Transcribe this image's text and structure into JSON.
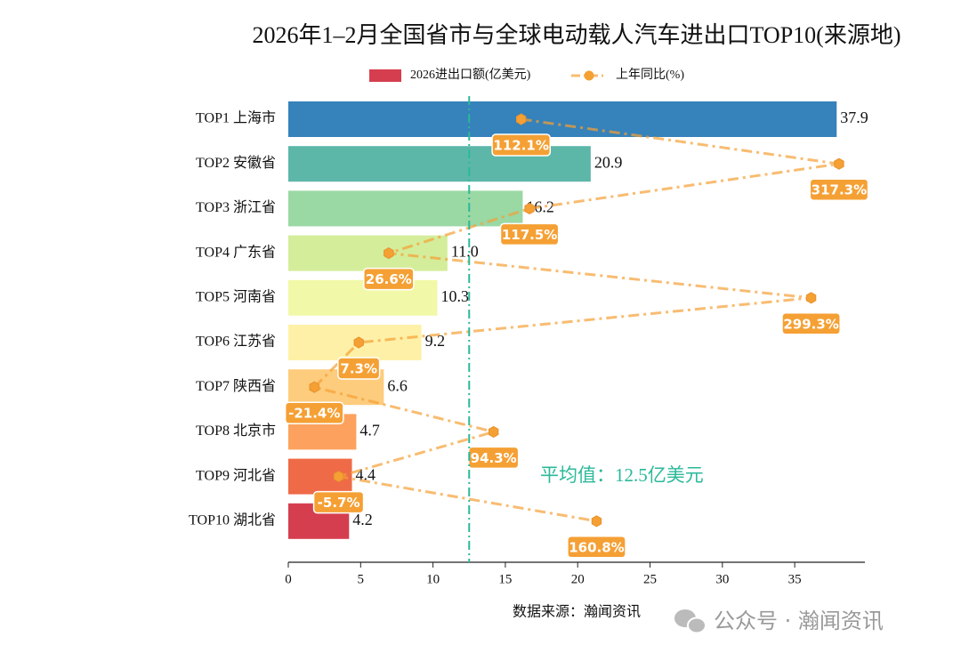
{
  "chart_data": {
    "type": "bar",
    "orientation": "horizontal",
    "title": "2026年1–2月全国省市与全球电动载人汽车进出口TOP10(来源地)",
    "categories": [
      "TOP1 上海市",
      "TOP2 安徽省",
      "TOP3 浙江省",
      "TOP4 广东省",
      "TOP5 河南省",
      "TOP6 江苏省",
      "TOP7 陕西省",
      "TOP8 北京市",
      "TOP9 河北省",
      "TOP10 湖北省"
    ],
    "series": [
      {
        "name": "2026进出口额(亿美元)",
        "type": "bar",
        "color": "#d53e4f",
        "colors": [
          "#3682ba",
          "#5cb7a9",
          "#9ad8a4",
          "#d4ed9b",
          "#f1f9a9",
          "#fef1a7",
          "#fdcc7d",
          "#fca25e",
          "#ef6a47",
          "#d53e4f"
        ],
        "values": [
          37.9,
          20.9,
          16.2,
          11.0,
          10.3,
          9.2,
          6.6,
          4.7,
          4.4,
          4.2
        ],
        "value_labels": [
          "37.9",
          "20.9",
          "16.2",
          "11.0",
          "10.3",
          "9.2",
          "6.6",
          "4.7",
          "4.4",
          "4.2"
        ]
      },
      {
        "name": "上年同比(%)",
        "type": "line",
        "axis": "x2",
        "color": "#f5a034",
        "values": [
          112.1,
          317.3,
          117.5,
          26.6,
          299.3,
          7.3,
          -21.4,
          94.3,
          -5.7,
          160.8
        ],
        "value_labels": [
          "112.1%",
          "317.3%",
          "117.5%",
          "26.6%",
          "299.3%",
          "7.3%",
          "-21.4%",
          "94.3%",
          "-5.7%",
          "160.8%"
        ]
      }
    ],
    "average": {
      "value": 12.5,
      "label": "平均值：12.5亿美元",
      "color": "#2bb99a"
    },
    "xlim": [
      0,
      39.85
    ],
    "xticks": [
      0,
      5,
      10,
      15,
      20,
      25,
      30,
      35
    ],
    "x2lim": [
      -38.2,
      334
    ],
    "legend": "top",
    "source": "数据来源：瀚闻资讯",
    "watermark": "公众号 · 瀚闻资讯"
  }
}
